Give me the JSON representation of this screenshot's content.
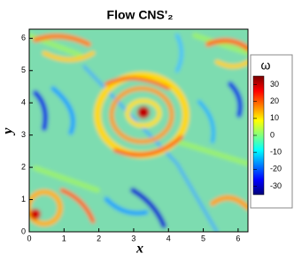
{
  "chart_data": {
    "type": "heatmap",
    "title": "Flow CNS'₂",
    "x_label": "x",
    "y_label": "y",
    "xlim": [
      0,
      6.283
    ],
    "ylim": [
      0,
      6.283
    ],
    "xticks": [
      0,
      1,
      2,
      3,
      4,
      5,
      6
    ],
    "yticks": [
      0,
      1,
      2,
      3,
      4,
      5,
      6
    ],
    "colorbar": {
      "label": "ω",
      "lim": [
        -35,
        35
      ],
      "ticks": [
        -30,
        -20,
        -10,
        0,
        10,
        20,
        30
      ],
      "colors": [
        "#00007a",
        "#0000ff",
        "#0080ff",
        "#00ffff",
        "#80ff80",
        "#ffff00",
        "#ff8000",
        "#ff0000",
        "#7a0000"
      ]
    }
  }
}
